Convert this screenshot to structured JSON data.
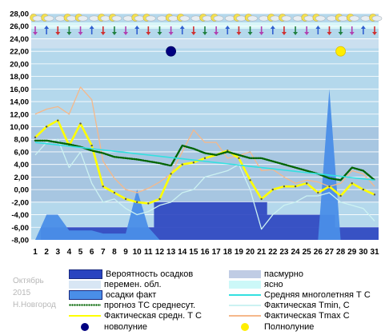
{
  "chart_data": {
    "type": "line",
    "ylim": [
      -8,
      28
    ],
    "yticks": [
      "28,00",
      "26,00",
      "24,00",
      "22,00",
      "20,00",
      "18,00",
      "16,00",
      "14,00",
      "12,00",
      "10,00",
      "8,00",
      "6,00",
      "4,00",
      "2,00",
      "0,00",
      "-2,00",
      "-4,00",
      "-6,00",
      "-8,00"
    ],
    "days": [
      "1",
      "2",
      "3",
      "4",
      "5",
      "6",
      "7",
      "8",
      "9",
      "10",
      "11",
      "12",
      "13",
      "14",
      "15",
      "16",
      "17",
      "18",
      "19",
      "20",
      "21",
      "22",
      "23",
      "24",
      "25",
      "26",
      "27",
      "28",
      "29",
      "30",
      "31"
    ],
    "series": [
      {
        "name": "Фактическая Tmax C",
        "color": "#f5b88a",
        "values": [
          12,
          12.8,
          13.2,
          12,
          16.3,
          14.3,
          4.5,
          1.8,
          0,
          -0.5,
          0.2,
          1.2,
          2.5,
          6,
          9.5,
          7.5,
          7.5,
          5,
          5.4,
          6,
          3,
          3.2,
          2,
          1,
          1.5,
          1.2,
          0.5,
          1,
          3,
          2.5,
          0.5
        ]
      },
      {
        "name": "Фактическая Tmin, C",
        "color": "#ccf2f2",
        "values": [
          5.5,
          7.5,
          8,
          3.5,
          6,
          1,
          -2,
          -1.5,
          -3,
          -4,
          -3.5,
          -2.5,
          -2,
          -0.5,
          0,
          2,
          2.5,
          3,
          4,
          0,
          -6.3,
          -4,
          -2.5,
          -2,
          -1,
          -1,
          -0.5,
          -2,
          -2.5,
          -3,
          -5
        ]
      },
      {
        "name": "Фактическая средн. Т С",
        "color": "#ffff00",
        "values": [
          8.3,
          10,
          11,
          7,
          10.5,
          7,
          0.5,
          -0.5,
          -1.5,
          -2,
          -2.2,
          -1.5,
          2.5,
          4,
          4.3,
          5,
          5.5,
          6.2,
          5,
          1.5,
          -1.5,
          0,
          0.5,
          0.5,
          1,
          -0.5,
          0.5,
          -1,
          1,
          0,
          -0.8
        ]
      },
      {
        "name": "прогноз ТС среднесут.",
        "color": "#006400",
        "values": [
          7.8,
          7.8,
          7.5,
          7.2,
          6.8,
          6.2,
          5.8,
          5.2,
          5,
          4.8,
          4.5,
          4.2,
          3.8,
          7,
          6.5,
          5.8,
          5.5,
          6,
          5.5,
          5,
          5,
          4.5,
          4,
          3.5,
          3,
          2.5,
          1.8,
          1.5,
          3.5,
          3,
          1.5
        ]
      },
      {
        "name": "Средняя многолетняя Т С",
        "color": "#33e0e0",
        "values": [
          7.5,
          7.3,
          7.1,
          6.9,
          6.7,
          6.5,
          6.3,
          6.1,
          5.9,
          5.7,
          5.5,
          5.3,
          5.1,
          4.9,
          4.7,
          4.5,
          4.3,
          4.1,
          3.9,
          3.7,
          3.5,
          3.3,
          3.1,
          2.9,
          2.7,
          2.5,
          2.3,
          2.1,
          1.9,
          1.7,
          1.5
        ]
      }
    ],
    "precipitation_fact": [
      -8,
      -4,
      -4,
      -6.5,
      -6.5,
      -6.5,
      -7,
      -7,
      -7,
      0,
      -6,
      -8,
      -8,
      -8,
      -8,
      -8,
      -8,
      -8,
      -8,
      -8,
      -8,
      -8,
      -8,
      -8,
      -8,
      -8,
      16,
      -8,
      -8,
      -8,
      -8
    ],
    "precip_probability": [
      -8,
      -6,
      -6,
      -6,
      -6,
      -6,
      -6,
      -6,
      -6,
      -6,
      -6,
      -2,
      -2,
      -2,
      -2,
      -2,
      -2,
      -2,
      -2,
      -2,
      -2,
      -4,
      -4,
      -4,
      -4,
      -4,
      -4,
      -6,
      -6,
      -6,
      -6
    ],
    "moon": [
      {
        "phase": "new",
        "day": 13,
        "value": 22
      },
      {
        "phase": "full",
        "day": 28,
        "value": 22
      }
    ],
    "legend": [
      {
        "label": "Вероятность осадков",
        "swatch": "#2a44c0",
        "kind": "box"
      },
      {
        "label": "пасмурно",
        "swatch": "#c0cce4",
        "kind": "box"
      },
      {
        "label": "перемен. обл.",
        "swatch": "#d8e6f4",
        "kind": "box"
      },
      {
        "label": "ясно",
        "swatch": "#ccf8f8",
        "kind": "box"
      },
      {
        "label": "осадки факт",
        "swatch": "#4a8ee8",
        "kind": "box"
      },
      {
        "label": "Средняя многолетняя Т С",
        "swatch": "#33e0e0",
        "kind": "line"
      },
      {
        "label": "прогноз ТС среднесут.",
        "swatch": "#006400",
        "kind": "dotted"
      },
      {
        "label": "Фактическая Tmin, C",
        "swatch": "#ccf2f2",
        "kind": "line"
      },
      {
        "label": "Фактическая средн. Т С",
        "swatch": "#ffff00",
        "kind": "line"
      },
      {
        "label": "Фактическая Tmax C",
        "swatch": "#f5b88a",
        "kind": "line"
      },
      {
        "label": "новолуние",
        "swatch": "#000080",
        "kind": "dot"
      },
      {
        "label": "Полнолуние",
        "swatch": "#ffee00",
        "kind": "dot"
      }
    ],
    "watermark": [
      "Октябрь",
      "2015",
      "Н.Новгород"
    ]
  },
  "colors": {
    "plot_bg": "#b4d8ec",
    "grid": "#ffffff",
    "overcast": "#9cb8d8",
    "variable": "#cce0f0",
    "clear": "#d8f6f8",
    "probability": "#2a44c0",
    "precip": "#4a8ee8"
  }
}
